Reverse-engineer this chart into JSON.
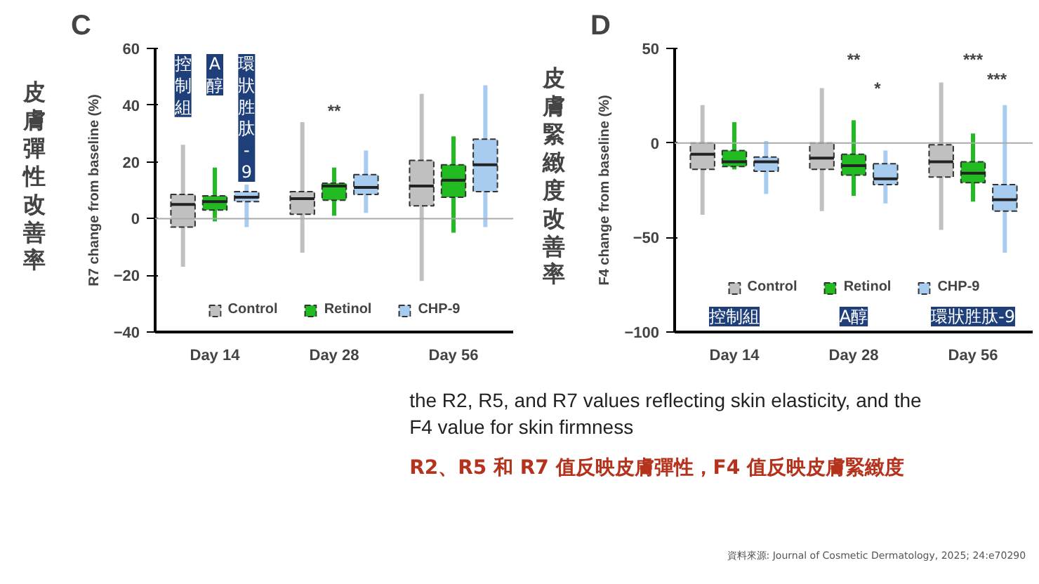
{
  "chart_data": [
    {
      "type": "box",
      "title": "C",
      "ylabel": "R7 change from baseline (%)",
      "categories": [
        "Day 14",
        "Day 28",
        "Day 56"
      ],
      "ylim": [
        -40,
        60
      ],
      "yticks": [
        -40,
        -20,
        0,
        20,
        40,
        60
      ],
      "grid": false,
      "legend": "bottom",
      "ref_lines": [
        {
          "axis": "y",
          "value": 0,
          "color": "#aaaaaa"
        }
      ],
      "annotations": [
        "皮膚彈性改善率",
        "控制組",
        "A醇",
        "環狀胜肽-9",
        "**"
      ],
      "series": [
        {
          "name": "Control",
          "color": "#c0c0c0",
          "boxes": [
            {
              "low": -17,
              "q1": -3,
              "median": 5,
              "q3": 8.5,
              "high": 26
            },
            {
              "low": -12,
              "q1": 1.5,
              "median": 7,
              "q3": 9.5,
              "high": 34
            },
            {
              "low": -22,
              "q1": 4.5,
              "median": 11.5,
              "q3": 20.5,
              "high": 44
            }
          ]
        },
        {
          "name": "Retinol",
          "color": "#22bb22",
          "boxes": [
            {
              "low": -1,
              "q1": 3,
              "median": 6,
              "q3": 8,
              "high": 18
            },
            {
              "low": 1,
              "q1": 6.5,
              "median": 11.5,
              "q3": 12.5,
              "high": 18
            },
            {
              "low": -5,
              "q1": 7.5,
              "median": 13.5,
              "q3": 19,
              "high": 29
            }
          ]
        },
        {
          "name": "CHP-9",
          "color": "#a8ccf0",
          "boxes": [
            {
              "low": -3,
              "q1": 6,
              "median": 7.5,
              "q3": 9.5,
              "high": 12
            },
            {
              "low": 2,
              "q1": 8.5,
              "median": 11,
              "q3": 15.5,
              "high": 24
            },
            {
              "low": -3,
              "q1": 9.5,
              "median": 19,
              "q3": 28,
              "high": 47
            }
          ]
        }
      ]
    },
    {
      "type": "box",
      "title": "D",
      "ylabel": "F4 change from baseline (%)",
      "categories": [
        "Day 14",
        "Day 28",
        "Day 56"
      ],
      "ylim": [
        -100,
        50
      ],
      "yticks": [
        -100,
        -50,
        0,
        50
      ],
      "grid": false,
      "legend": "bottom",
      "ref_lines": [
        {
          "axis": "y",
          "value": 0,
          "color": "#aaaaaa"
        }
      ],
      "annotations": [
        "皮膚緊緻度改善率",
        "控制組",
        "A醇",
        "環狀胜肽-9",
        "**",
        "*",
        "***",
        "***"
      ],
      "series": [
        {
          "name": "Control",
          "color": "#c0c0c0",
          "boxes": [
            {
              "low": -38,
              "q1": -14,
              "median": -6,
              "q3": 0,
              "high": 20
            },
            {
              "low": -36,
              "q1": -14,
              "median": -8,
              "q3": 0,
              "high": 29
            },
            {
              "low": -46,
              "q1": -18,
              "median": -10,
              "q3": -1,
              "high": 32
            }
          ]
        },
        {
          "name": "Retinol",
          "color": "#22bb22",
          "boxes": [
            {
              "low": -14,
              "q1": -12.5,
              "median": -10,
              "q3": -4,
              "high": 11
            },
            {
              "low": -28,
              "q1": -17,
              "median": -12,
              "q3": -6,
              "high": 12
            },
            {
              "low": -31,
              "q1": -21,
              "median": -16,
              "q3": -10,
              "high": 5
            }
          ]
        },
        {
          "name": "CHP-9",
          "color": "#a8ccf0",
          "boxes": [
            {
              "low": -27,
              "q1": -15,
              "median": -10,
              "q3": -7.5,
              "high": 1
            },
            {
              "low": -32,
              "q1": -22,
              "median": -19,
              "q3": -11,
              "high": -4
            },
            {
              "low": -58,
              "q1": -36,
              "median": -30,
              "q3": -22,
              "high": 20
            }
          ]
        }
      ]
    },
    {
      "type": "other",
      "annotations": [
        "the R2, R5, and R7 values reflecting skin elasticity, and the\nF4 value for skin firmness",
        "R2、R5 和 R7 值反映皮膚彈性，F4 值反映皮膚緊緻度",
        "資料來源: Journal of Cosmetic Dermatology, 2025; 24:e70290"
      ]
    }
  ]
}
